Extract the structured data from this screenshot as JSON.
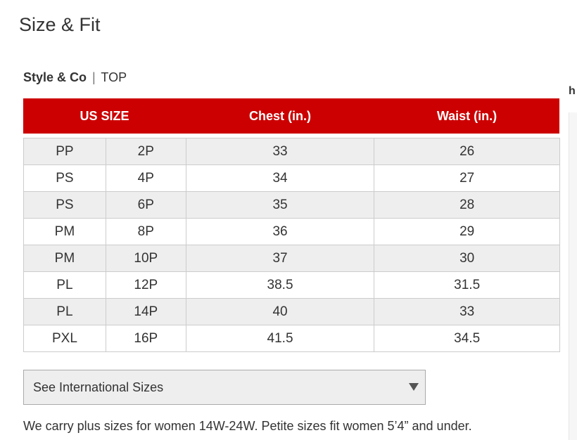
{
  "title": "Size & Fit",
  "brand": {
    "name": "Style & Co",
    "separator": "|",
    "category": "TOP"
  },
  "edge_text": "h",
  "table": {
    "headers": [
      "US SIZE",
      "Chest (in.)",
      "Waist (in.)"
    ],
    "rows": [
      [
        "PP",
        "2P",
        "33",
        "26"
      ],
      [
        "PS",
        "4P",
        "34",
        "27"
      ],
      [
        "PS",
        "6P",
        "35",
        "28"
      ],
      [
        "PM",
        "8P",
        "36",
        "29"
      ],
      [
        "PM",
        "10P",
        "37",
        "30"
      ],
      [
        "PL",
        "12P",
        "38.5",
        "31.5"
      ],
      [
        "PL",
        "14P",
        "40",
        "33"
      ],
      [
        "PXL",
        "16P",
        "41.5",
        "34.5"
      ]
    ]
  },
  "international": {
    "selected": "See International Sizes",
    "icon": "dropdown-arrow-icon"
  },
  "footnote": "We carry plus sizes for women 14W-24W. Petite sizes fit women 5’4” and under.",
  "colors": {
    "header_bg": "#cc0000",
    "header_text": "#ffffff",
    "row_alt": "#eeeeee",
    "text": "#333333"
  }
}
